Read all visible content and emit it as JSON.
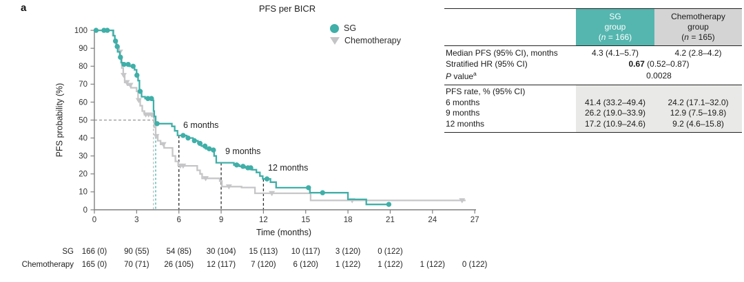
{
  "panel_label": "a",
  "chart_data": {
    "type": "line",
    "subtype": "kaplan-meier-step",
    "title": "PFS per BICR",
    "xlabel": "Time (months)",
    "ylabel": "PFS probability (%)",
    "xlim": [
      0,
      27
    ],
    "ylim": [
      0,
      100
    ],
    "xticks": [
      0,
      3,
      6,
      9,
      12,
      15,
      18,
      21,
      24,
      27
    ],
    "yticks": [
      0,
      10,
      20,
      30,
      40,
      50,
      60,
      70,
      80,
      90,
      100
    ],
    "grid": false,
    "legend_position": "top-right-inside",
    "series": [
      {
        "name": "SG",
        "color": "#3fafa8",
        "marker": "circle",
        "steps": [
          [
            0,
            100
          ],
          [
            1.35,
            97
          ],
          [
            1.45,
            94
          ],
          [
            1.55,
            91
          ],
          [
            1.65,
            88
          ],
          [
            1.8,
            85
          ],
          [
            1.9,
            82
          ],
          [
            2.0,
            81
          ],
          [
            2.5,
            80
          ],
          [
            2.85,
            78
          ],
          [
            3.0,
            75
          ],
          [
            3.1,
            72
          ],
          [
            3.2,
            66
          ],
          [
            3.35,
            63
          ],
          [
            3.6,
            62
          ],
          [
            4.1,
            61
          ],
          [
            4.2,
            55
          ],
          [
            4.25,
            52
          ],
          [
            4.35,
            48
          ],
          [
            5.5,
            46.5
          ],
          [
            5.7,
            44
          ],
          [
            5.9,
            41.4
          ],
          [
            6.55,
            40
          ],
          [
            7.0,
            38.5
          ],
          [
            7.35,
            37
          ],
          [
            7.6,
            35.5
          ],
          [
            7.9,
            34
          ],
          [
            8.2,
            33.3
          ],
          [
            8.5,
            30
          ],
          [
            8.65,
            26.2
          ],
          [
            9.9,
            25
          ],
          [
            10.3,
            24.2
          ],
          [
            10.7,
            23.4
          ],
          [
            11.2,
            22.3
          ],
          [
            11.5,
            20.8
          ],
          [
            11.75,
            18.8
          ],
          [
            11.95,
            17.2
          ],
          [
            12.5,
            15.4
          ],
          [
            12.9,
            12.3
          ],
          [
            15.3,
            9.5
          ],
          [
            18.0,
            5.8
          ],
          [
            19.3,
            3.0
          ]
        ],
        "end_time": 21.0,
        "censor_times": [
          0.12,
          0.68,
          0.92,
          1.5,
          1.62,
          1.85,
          2.1,
          2.4,
          2.75,
          3.02,
          3.25,
          3.8,
          4.05,
          4.45,
          6.3,
          6.65,
          7.1,
          7.5,
          7.85,
          8.15,
          8.45,
          10.1,
          10.55,
          10.9,
          11.1,
          12.25,
          15.2,
          16.2,
          20.9
        ]
      },
      {
        "name": "Chemotherapy",
        "color": "#c6c6c8",
        "marker": "triangle-down",
        "steps": [
          [
            0,
            100
          ],
          [
            1.3,
            97
          ],
          [
            1.45,
            94
          ],
          [
            1.6,
            91
          ],
          [
            1.75,
            88
          ],
          [
            1.85,
            85
          ],
          [
            1.95,
            79
          ],
          [
            2.05,
            75
          ],
          [
            2.15,
            71
          ],
          [
            2.35,
            69.5
          ],
          [
            2.6,
            68
          ],
          [
            3.0,
            66
          ],
          [
            3.1,
            61
          ],
          [
            3.25,
            58
          ],
          [
            3.4,
            55
          ],
          [
            3.55,
            53
          ],
          [
            4.15,
            52
          ],
          [
            4.25,
            46
          ],
          [
            4.35,
            41
          ],
          [
            4.5,
            38.5
          ],
          [
            4.7,
            36.5
          ],
          [
            4.95,
            34.5
          ],
          [
            5.55,
            30
          ],
          [
            5.75,
            27
          ],
          [
            5.95,
            24.5
          ],
          [
            7.3,
            22
          ],
          [
            7.5,
            20
          ],
          [
            7.65,
            17.5
          ],
          [
            8.9,
            16
          ],
          [
            9.05,
            12.9
          ],
          [
            10.45,
            12.4
          ],
          [
            11.4,
            9.2
          ],
          [
            15.35,
            5.2
          ]
        ],
        "end_time": 26.35,
        "censor_times": [
          1.82,
          2.08,
          2.3,
          2.55,
          3.15,
          3.65,
          3.85,
          4.05,
          4.4,
          4.9,
          6.1,
          6.3,
          7.9,
          9.55,
          12.6,
          18.3,
          26.1
        ]
      }
    ],
    "annotations": [
      {
        "text": "6 months",
        "t": 6,
        "p": 41.4
      },
      {
        "text": "9 months",
        "t": 9,
        "p": 26.2
      },
      {
        "text": "12 months",
        "t": 12,
        "p": 17.2
      }
    ],
    "median_reference": {
      "fifty_percent_line": {
        "p": 50,
        "to_t": 4.35
      },
      "verticals": [
        {
          "t": 4.19,
          "top_p": 52,
          "color": "#bdbdbf"
        },
        {
          "t": 4.35,
          "top_p": 50,
          "color": "#3fafa8"
        }
      ]
    },
    "at_risk": {
      "rows": [
        {
          "label": "SG",
          "values": [
            "166 (0)",
            "90 (55)",
            "54 (85)",
            "30 (104)",
            "15 (113)",
            "10 (117)",
            "3 (120)",
            "0 (122)"
          ]
        },
        {
          "label": "Chemotherapy",
          "values": [
            "165 (0)",
            "70 (71)",
            "26 (105)",
            "12 (117)",
            "7 (120)",
            "6 (120)",
            "1 (122)",
            "1 (122)",
            "1 (122)",
            "0 (122)"
          ]
        }
      ]
    }
  },
  "results_table": {
    "header": {
      "sg": {
        "line1": "SG",
        "line2": "group",
        "n_pre": "(",
        "n_italic": "n",
        "n_post": " = 166)"
      },
      "chemo": {
        "line1": "Chemotherapy",
        "line2": "group",
        "n_pre": "(",
        "n_italic": "n",
        "n_post": " = 165)"
      }
    },
    "rows": {
      "median": {
        "label": "Median PFS (95% CI), months",
        "sg": "4.3 (4.1–5.7)",
        "chemo": "4.2 (2.8–4.2)"
      },
      "hr": {
        "label": "Stratified HR (95% CI)",
        "value_bold": "0.67",
        "value_rest": " (0.52–0.87)"
      },
      "pvalue": {
        "label_italic": "P",
        "label_rest": " value",
        "label_sup": "a",
        "value": "0.0028"
      },
      "rate_header": {
        "label": "PFS rate, % (95% CI)"
      },
      "m6": {
        "label": "6 months",
        "sg": "41.4 (33.2–49.4)",
        "chemo": "24.2 (17.1–32.0)"
      },
      "m9": {
        "label": "9 months",
        "sg": "26.2 (19.0–33.9)",
        "chemo": "12.9 (7.5–19.8)"
      },
      "m12": {
        "label": "12 months",
        "sg": "17.2 (10.9–24.6)",
        "chemo": "9.2 (4.6–15.8)"
      }
    }
  }
}
